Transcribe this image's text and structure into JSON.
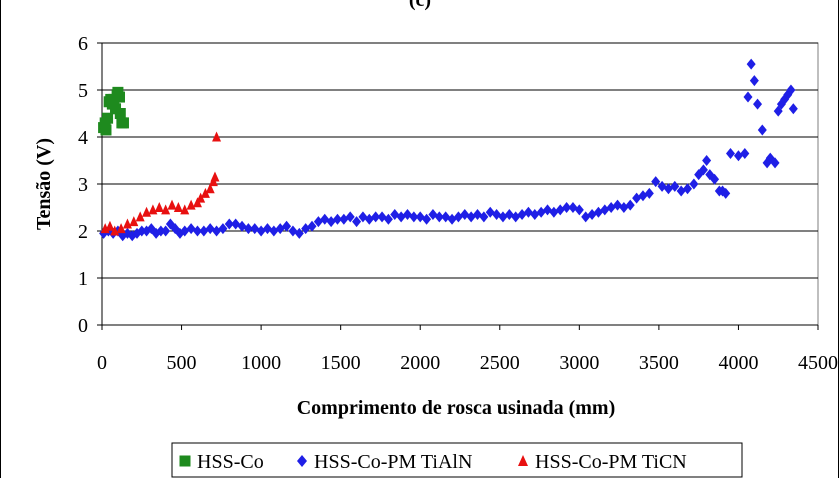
{
  "chart_data": {
    "type": "scatter",
    "title": "(c)",
    "xlabel": "Comprimento de rosca usinada (mm)",
    "ylabel": "Tensão (V)",
    "xlim": [
      0,
      4500
    ],
    "ylim": [
      0,
      6
    ],
    "x_ticks": [
      0,
      500,
      1000,
      1500,
      2000,
      2500,
      3000,
      3500,
      4000,
      4500
    ],
    "y_ticks": [
      0,
      1,
      2,
      3,
      4,
      5,
      6
    ],
    "x_tick_labels": [
      "0",
      "500",
      "1000",
      "1500",
      "2000",
      "2500",
      "3000",
      "3500",
      "4000",
      "4500"
    ],
    "y_tick_labels": [
      "0",
      "1",
      "2",
      "3",
      "4",
      "5",
      "6"
    ],
    "grid": "horizontal",
    "legend_position": "bottom",
    "series": [
      {
        "name": "HSS-Co",
        "marker": "square",
        "color": "#1e8a1e",
        "points": [
          [
            10,
            4.2
          ],
          [
            20,
            4.3
          ],
          [
            25,
            4.15
          ],
          [
            35,
            4.4
          ],
          [
            45,
            4.75
          ],
          [
            55,
            4.8
          ],
          [
            65,
            4.7
          ],
          [
            75,
            4.8
          ],
          [
            85,
            4.6
          ],
          [
            95,
            4.9
          ],
          [
            100,
            4.95
          ],
          [
            110,
            4.85
          ],
          [
            115,
            4.5
          ],
          [
            125,
            4.3
          ],
          [
            135,
            4.3
          ]
        ]
      },
      {
        "name": "HSS-Co-PM TiAlN",
        "marker": "diamond",
        "color": "#1f1fe6",
        "points": [
          [
            10,
            1.95
          ],
          [
            40,
            2.0
          ],
          [
            70,
            1.95
          ],
          [
            100,
            2.0
          ],
          [
            130,
            1.9
          ],
          [
            160,
            1.95
          ],
          [
            190,
            1.9
          ],
          [
            220,
            1.95
          ],
          [
            250,
            2.0
          ],
          [
            280,
            2.0
          ],
          [
            310,
            2.05
          ],
          [
            340,
            1.95
          ],
          [
            370,
            2.0
          ],
          [
            400,
            2.0
          ],
          [
            430,
            2.15
          ],
          [
            460,
            2.05
          ],
          [
            490,
            1.95
          ],
          [
            520,
            2.0
          ],
          [
            560,
            2.05
          ],
          [
            600,
            2.0
          ],
          [
            640,
            2.0
          ],
          [
            680,
            2.05
          ],
          [
            720,
            2.0
          ],
          [
            760,
            2.05
          ],
          [
            800,
            2.15
          ],
          [
            840,
            2.15
          ],
          [
            880,
            2.1
          ],
          [
            920,
            2.05
          ],
          [
            960,
            2.05
          ],
          [
            1000,
            2.0
          ],
          [
            1040,
            2.05
          ],
          [
            1080,
            2.0
          ],
          [
            1120,
            2.05
          ],
          [
            1160,
            2.1
          ],
          [
            1200,
            2.0
          ],
          [
            1240,
            1.95
          ],
          [
            1280,
            2.05
          ],
          [
            1320,
            2.1
          ],
          [
            1360,
            2.2
          ],
          [
            1400,
            2.25
          ],
          [
            1440,
            2.2
          ],
          [
            1480,
            2.25
          ],
          [
            1520,
            2.25
          ],
          [
            1560,
            2.3
          ],
          [
            1600,
            2.2
          ],
          [
            1640,
            2.3
          ],
          [
            1680,
            2.25
          ],
          [
            1720,
            2.3
          ],
          [
            1760,
            2.3
          ],
          [
            1800,
            2.25
          ],
          [
            1840,
            2.35
          ],
          [
            1880,
            2.3
          ],
          [
            1920,
            2.35
          ],
          [
            1960,
            2.3
          ],
          [
            2000,
            2.3
          ],
          [
            2040,
            2.25
          ],
          [
            2080,
            2.35
          ],
          [
            2120,
            2.3
          ],
          [
            2160,
            2.3
          ],
          [
            2200,
            2.25
          ],
          [
            2240,
            2.3
          ],
          [
            2280,
            2.35
          ],
          [
            2320,
            2.3
          ],
          [
            2360,
            2.35
          ],
          [
            2400,
            2.3
          ],
          [
            2440,
            2.4
          ],
          [
            2480,
            2.35
          ],
          [
            2520,
            2.3
          ],
          [
            2560,
            2.35
          ],
          [
            2600,
            2.3
          ],
          [
            2640,
            2.35
          ],
          [
            2680,
            2.4
          ],
          [
            2720,
            2.35
          ],
          [
            2760,
            2.4
          ],
          [
            2800,
            2.45
          ],
          [
            2840,
            2.4
          ],
          [
            2880,
            2.45
          ],
          [
            2920,
            2.5
          ],
          [
            2960,
            2.5
          ],
          [
            3000,
            2.45
          ],
          [
            3040,
            2.3
          ],
          [
            3080,
            2.35
          ],
          [
            3120,
            2.4
          ],
          [
            3160,
            2.45
          ],
          [
            3200,
            2.5
          ],
          [
            3240,
            2.55
          ],
          [
            3280,
            2.5
          ],
          [
            3320,
            2.55
          ],
          [
            3360,
            2.7
          ],
          [
            3400,
            2.75
          ],
          [
            3440,
            2.8
          ],
          [
            3480,
            3.05
          ],
          [
            3520,
            2.95
          ],
          [
            3560,
            2.9
          ],
          [
            3600,
            2.95
          ],
          [
            3640,
            2.85
          ],
          [
            3680,
            2.9
          ],
          [
            3720,
            3.0
          ],
          [
            3750,
            3.2
          ],
          [
            3780,
            3.3
          ],
          [
            3800,
            3.5
          ],
          [
            3820,
            3.2
          ],
          [
            3850,
            3.1
          ],
          [
            3880,
            2.85
          ],
          [
            3900,
            2.85
          ],
          [
            3920,
            2.8
          ],
          [
            3950,
            3.65
          ],
          [
            4000,
            3.6
          ],
          [
            4040,
            3.65
          ],
          [
            4060,
            4.85
          ],
          [
            4080,
            5.55
          ],
          [
            4100,
            5.2
          ],
          [
            4120,
            4.7
          ],
          [
            4150,
            4.15
          ],
          [
            4180,
            3.45
          ],
          [
            4200,
            3.55
          ],
          [
            4230,
            3.45
          ],
          [
            4250,
            4.55
          ],
          [
            4270,
            4.7
          ],
          [
            4290,
            4.8
          ],
          [
            4310,
            4.9
          ],
          [
            4330,
            5.0
          ],
          [
            4345,
            4.6
          ]
        ]
      },
      {
        "name": "HSS-Co-PM TiCN",
        "marker": "triangle",
        "color": "#e81010",
        "points": [
          [
            20,
            2.05
          ],
          [
            50,
            2.1
          ],
          [
            80,
            2.0
          ],
          [
            120,
            2.05
          ],
          [
            160,
            2.15
          ],
          [
            200,
            2.2
          ],
          [
            240,
            2.3
          ],
          [
            280,
            2.4
          ],
          [
            320,
            2.45
          ],
          [
            360,
            2.5
          ],
          [
            400,
            2.45
          ],
          [
            440,
            2.55
          ],
          [
            480,
            2.5
          ],
          [
            520,
            2.45
          ],
          [
            560,
            2.55
          ],
          [
            600,
            2.6
          ],
          [
            620,
            2.7
          ],
          [
            650,
            2.8
          ],
          [
            680,
            2.9
          ],
          [
            700,
            3.05
          ],
          [
            710,
            3.15
          ],
          [
            720,
            4.0
          ]
        ]
      }
    ]
  }
}
